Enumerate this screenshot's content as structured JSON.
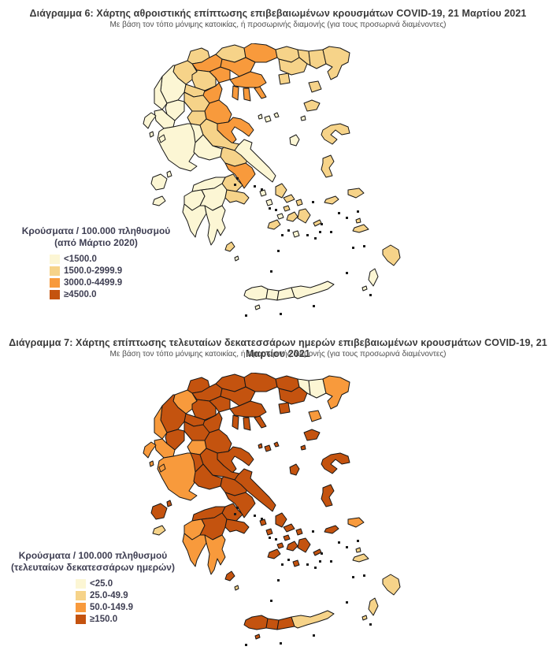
{
  "palette": {
    "band1": "#FCF6D4",
    "band2": "#F6D389",
    "band3": "#F89A3C",
    "band4": "#C4530F",
    "border": "#161616",
    "islet": "#1b1b1b"
  },
  "figures": [
    {
      "title": "Διάγραμμα 6: Χάρτης αθροιστικής επίπτωσης επιβεβαιωμένων κρουσμάτων COVID-19, 21 Μαρτίου 2021",
      "subtitle": "Με βάση τον τόπο μόνιμης κατοικίας, ή προσωρινής διαμονής (για τους προσωρινά διαμένοντες)",
      "legend": {
        "title_line1": "Κρούσματα / 100.000 πληθυσμού",
        "title_line2": "(από Μάρτιο 2020)",
        "items": [
          {
            "label": "<1500.0",
            "band": "band1"
          },
          {
            "label": "1500.0-2999.9",
            "band": "band2"
          },
          {
            "label": "3000.0-4499.9",
            "band": "band3"
          },
          {
            "label": "≥4500.0",
            "band": "band4"
          }
        ]
      },
      "regions": {
        "florina": 2,
        "pella": 3,
        "kilkis": 2,
        "serres": 3,
        "drama": 2,
        "xanthi": 2,
        "rodopi": 2,
        "evros": 2,
        "kavala": 2,
        "kastoria": 2,
        "kozani": 2,
        "imathia": 3,
        "thessaloniki": 3,
        "chalkidiki": 3,
        "kassandra": 3,
        "sithonia": 3,
        "athos": 3,
        "pieria": 3,
        "grevena": 2,
        "ioannina": 1,
        "thesprotia": 1,
        "arta": 1,
        "preveza": 1,
        "trikala": 2,
        "larissa": 3,
        "karditsa": 2,
        "magnisia": 3,
        "aitoloakarnania": 1,
        "evrytania": 1,
        "fthiotida": 2,
        "fokida": 1,
        "voiotia": 2,
        "attiki": 3,
        "evvoia": 1,
        "korinthia": 2,
        "achaia": 1,
        "ileia": 1,
        "arkadia": 1,
        "argolida": 2,
        "messinia": 1,
        "lakonia": 1,
        "kerkyra": 1,
        "paxoi": 1,
        "lefkada": 1,
        "kefalonia": 1,
        "ithaki": 1,
        "zakynthos": 1,
        "kythira": 2,
        "antikythera": 1,
        "thasos": 2,
        "samothraki": 2,
        "limnos": 2,
        "agios_efstratios": 1,
        "lesvos": 2,
        "chios": 2,
        "samos": 2,
        "ikaria": 2,
        "skiathos": 1,
        "skopelos": 1,
        "alonnisos": 1,
        "skyros": 1,
        "andros": 2,
        "tinos": 2,
        "mykonos": 2,
        "kea": 1,
        "kythnos": 1,
        "syros": 2,
        "sifnos": 1,
        "paros": 2,
        "naxos": 2,
        "amorgos": 2,
        "milos": 2,
        "thira": 1,
        "kos": 2,
        "kalymnos": 2,
        "rodos": 2,
        "karpathos": 1,
        "kasos": 1,
        "chania": 1,
        "rethymno": 1,
        "irakleio": 1,
        "lasithi": 1,
        "gavdos": 1
      }
    },
    {
      "title": "Διάγραμμα 7: Χάρτης επίπτωσης τελευταίων δεκατεσσάρων ημερών επιβεβαιωμένων κρουσμάτων COVID-19, 21 Μαρτίου 2021",
      "subtitle": "Με βάση τον τόπο μόνιμης κατοικίας, ή προσωρινής διαμονής (για τους προσωρινά διαμένοντες)",
      "legend": {
        "title_line1": "Κρούσματα / 100.000 πληθυσμού",
        "title_line2": "(τελευταίων δεκατεσσάρων ημερών)",
        "items": [
          {
            "label": "<25.0",
            "band": "band1"
          },
          {
            "label": "25.0-49.9",
            "band": "band2"
          },
          {
            "label": "50.0-149.9",
            "band": "band3"
          },
          {
            "label": "≥150.0",
            "band": "band4"
          }
        ]
      },
      "regions": {
        "florina": 4,
        "pella": 4,
        "kilkis": 4,
        "serres": 4,
        "drama": 4,
        "xanthi": 1,
        "rodopi": 1,
        "evros": 3,
        "kavala": 4,
        "kastoria": 3,
        "kozani": 4,
        "imathia": 4,
        "thessaloniki": 4,
        "chalkidiki": 4,
        "kassandra": 4,
        "sithonia": 4,
        "athos": 4,
        "pieria": 4,
        "grevena": 4,
        "ioannina": 4,
        "thesprotia": 3,
        "arta": 4,
        "preveza": 3,
        "trikala": 4,
        "larissa": 4,
        "karditsa": 3,
        "magnisia": 4,
        "aitoloakarnania": 3,
        "evrytania": 4,
        "fthiotida": 4,
        "fokida": 4,
        "voiotia": 4,
        "attiki": 4,
        "evvoia": 4,
        "korinthia": 4,
        "achaia": 4,
        "ileia": 3,
        "arkadia": 4,
        "argolida": 4,
        "messinia": 3,
        "lakonia": 3,
        "kerkyra": 3,
        "paxoi": 3,
        "lefkada": 3,
        "kefalonia": 4,
        "ithaki": 4,
        "zakynthos": 2,
        "kythira": 4,
        "antikythera": 2,
        "thasos": 4,
        "samothraki": 3,
        "limnos": 4,
        "agios_efstratios": 4,
        "lesvos": 4,
        "chios": 4,
        "samos": 3,
        "ikaria": 4,
        "skiathos": 4,
        "skopelos": 4,
        "alonnisos": 4,
        "skyros": 4,
        "andros": 4,
        "tinos": 4,
        "mykonos": 4,
        "kea": 4,
        "kythnos": 4,
        "syros": 4,
        "sifnos": 4,
        "paros": 4,
        "naxos": 4,
        "amorgos": 4,
        "milos": 4,
        "thira": 4,
        "kos": 2,
        "kalymnos": 2,
        "rodos": 2,
        "karpathos": 2,
        "kasos": 2,
        "chania": 4,
        "rethymno": 4,
        "irakleio": 4,
        "lasithi": 2,
        "gavdos": 4
      }
    }
  ]
}
